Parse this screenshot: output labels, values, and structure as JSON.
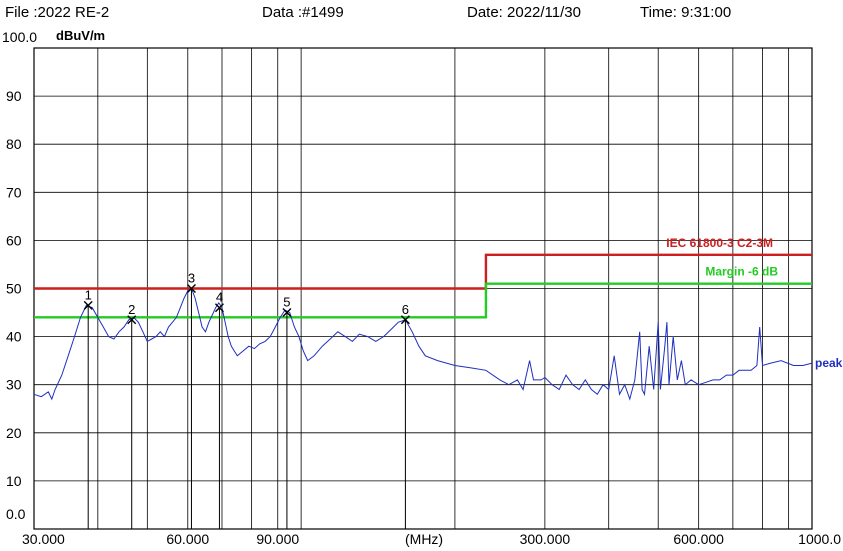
{
  "header": {
    "file": "File :2022 RE-2",
    "data": "Data :#1499",
    "date": "Date: 2022/11/30",
    "time": "Time: 9:31:00"
  },
  "chart_data": {
    "type": "line",
    "ylabel": "dBuV/m",
    "xunit": "(MHz)",
    "x_scale": "log",
    "xlim": [
      30,
      1000
    ],
    "ylim": [
      0,
      100
    ],
    "y_ticks": [
      "0.0",
      "10",
      "20",
      "30",
      "40",
      "50",
      "60",
      "70",
      "80",
      "90",
      "100.0"
    ],
    "x_tick_labels": [
      {
        "x": 30,
        "label": "30.000"
      },
      {
        "x": 60,
        "label": "60.000"
      },
      {
        "x": 90,
        "label": "90.000"
      },
      {
        "x": 300,
        "label": "300.000"
      },
      {
        "x": 600,
        "label": "600.000"
      },
      {
        "x": 1000,
        "label": "1000.0"
      }
    ],
    "grid": true,
    "limit_lines": [
      {
        "label": "IEC 61800-3 C2-3M",
        "color": "#cc1f1f",
        "segments": [
          {
            "x0": 30,
            "x1": 230,
            "y": 50
          },
          {
            "x0": 230,
            "x1": 1000,
            "y": 57
          }
        ]
      },
      {
        "label": "Margin -6 dB",
        "color": "#22cc22",
        "segments": [
          {
            "x0": 30,
            "x1": 230,
            "y": 44
          },
          {
            "x0": 230,
            "x1": 1000,
            "y": 51
          }
        ]
      }
    ],
    "series": [
      {
        "name": "peak",
        "color": "#1f2fbf",
        "points": [
          [
            30,
            28
          ],
          [
            31,
            27.5
          ],
          [
            32,
            28.5
          ],
          [
            32.5,
            27
          ],
          [
            33,
            29
          ],
          [
            34,
            32
          ],
          [
            35,
            36
          ],
          [
            36,
            40
          ],
          [
            37,
            44
          ],
          [
            38,
            46.5
          ],
          [
            39,
            46
          ],
          [
            40,
            44
          ],
          [
            41,
            42
          ],
          [
            42,
            40
          ],
          [
            43,
            39.5
          ],
          [
            44,
            41
          ],
          [
            45,
            42
          ],
          [
            46,
            43.5
          ],
          [
            47,
            44
          ],
          [
            48,
            43
          ],
          [
            49,
            41
          ],
          [
            50,
            39
          ],
          [
            51,
            39.5
          ],
          [
            52,
            40
          ],
          [
            53,
            41
          ],
          [
            54,
            40
          ],
          [
            55,
            42
          ],
          [
            56,
            43
          ],
          [
            57,
            44
          ],
          [
            58,
            46
          ],
          [
            59,
            48
          ],
          [
            60,
            49.5
          ],
          [
            61,
            50
          ],
          [
            62,
            48
          ],
          [
            63,
            45
          ],
          [
            64,
            42
          ],
          [
            65,
            41
          ],
          [
            66,
            43
          ],
          [
            67,
            44.5
          ],
          [
            68,
            46
          ],
          [
            69,
            47
          ],
          [
            70,
            46
          ],
          [
            71,
            43
          ],
          [
            72,
            40
          ],
          [
            73,
            38
          ],
          [
            74,
            37
          ],
          [
            75,
            36
          ],
          [
            77,
            37
          ],
          [
            79,
            38
          ],
          [
            81,
            37.5
          ],
          [
            83,
            38.5
          ],
          [
            85,
            39
          ],
          [
            87,
            40
          ],
          [
            89,
            42
          ],
          [
            91,
            44
          ],
          [
            93,
            45.5
          ],
          [
            95,
            45
          ],
          [
            97,
            42
          ],
          [
            99,
            40
          ],
          [
            101,
            37
          ],
          [
            103,
            35
          ],
          [
            106,
            36
          ],
          [
            110,
            38
          ],
          [
            114,
            39.5
          ],
          [
            118,
            41
          ],
          [
            122,
            40
          ],
          [
            126,
            39
          ],
          [
            130,
            40.5
          ],
          [
            135,
            40
          ],
          [
            140,
            39
          ],
          [
            145,
            40
          ],
          [
            150,
            41.5
          ],
          [
            155,
            43
          ],
          [
            160,
            43.5
          ],
          [
            165,
            41
          ],
          [
            170,
            38
          ],
          [
            175,
            36
          ],
          [
            185,
            35
          ],
          [
            200,
            34
          ],
          [
            215,
            33.5
          ],
          [
            230,
            33
          ],
          [
            245,
            31
          ],
          [
            255,
            30
          ],
          [
            265,
            31
          ],
          [
            272,
            29
          ],
          [
            280,
            35
          ],
          [
            285,
            31
          ],
          [
            295,
            31
          ],
          [
            300,
            31.5
          ],
          [
            310,
            30
          ],
          [
            320,
            29
          ],
          [
            330,
            32
          ],
          [
            340,
            30
          ],
          [
            350,
            29
          ],
          [
            360,
            31
          ],
          [
            370,
            29
          ],
          [
            380,
            28
          ],
          [
            390,
            30
          ],
          [
            400,
            29
          ],
          [
            410,
            36
          ],
          [
            420,
            28
          ],
          [
            430,
            30
          ],
          [
            440,
            27
          ],
          [
            450,
            31
          ],
          [
            460,
            41
          ],
          [
            465,
            29
          ],
          [
            470,
            28
          ],
          [
            480,
            38
          ],
          [
            490,
            29
          ],
          [
            500,
            43
          ],
          [
            505,
            29
          ],
          [
            515,
            38
          ],
          [
            520,
            43
          ],
          [
            525,
            30
          ],
          [
            535,
            40
          ],
          [
            545,
            31
          ],
          [
            555,
            35
          ],
          [
            565,
            30
          ],
          [
            580,
            31
          ],
          [
            600,
            30
          ],
          [
            620,
            30.5
          ],
          [
            640,
            31
          ],
          [
            660,
            31
          ],
          [
            680,
            32
          ],
          [
            700,
            32
          ],
          [
            720,
            33
          ],
          [
            740,
            33
          ],
          [
            760,
            33
          ],
          [
            780,
            34
          ],
          [
            790,
            42
          ],
          [
            800,
            34
          ],
          [
            830,
            34.5
          ],
          [
            870,
            35
          ],
          [
            920,
            34
          ],
          [
            960,
            34
          ],
          [
            1000,
            34.5
          ]
        ]
      }
    ],
    "markers": [
      {
        "label": "1",
        "x": 38.3,
        "y": 46.5
      },
      {
        "label": "2",
        "x": 46.6,
        "y": 43.5
      },
      {
        "label": "3",
        "x": 61.0,
        "y": 50.0
      },
      {
        "label": "4",
        "x": 69.2,
        "y": 46.0
      },
      {
        "label": "5",
        "x": 93.8,
        "y": 45.0
      },
      {
        "label": "6",
        "x": 160.0,
        "y": 43.5
      }
    ]
  }
}
